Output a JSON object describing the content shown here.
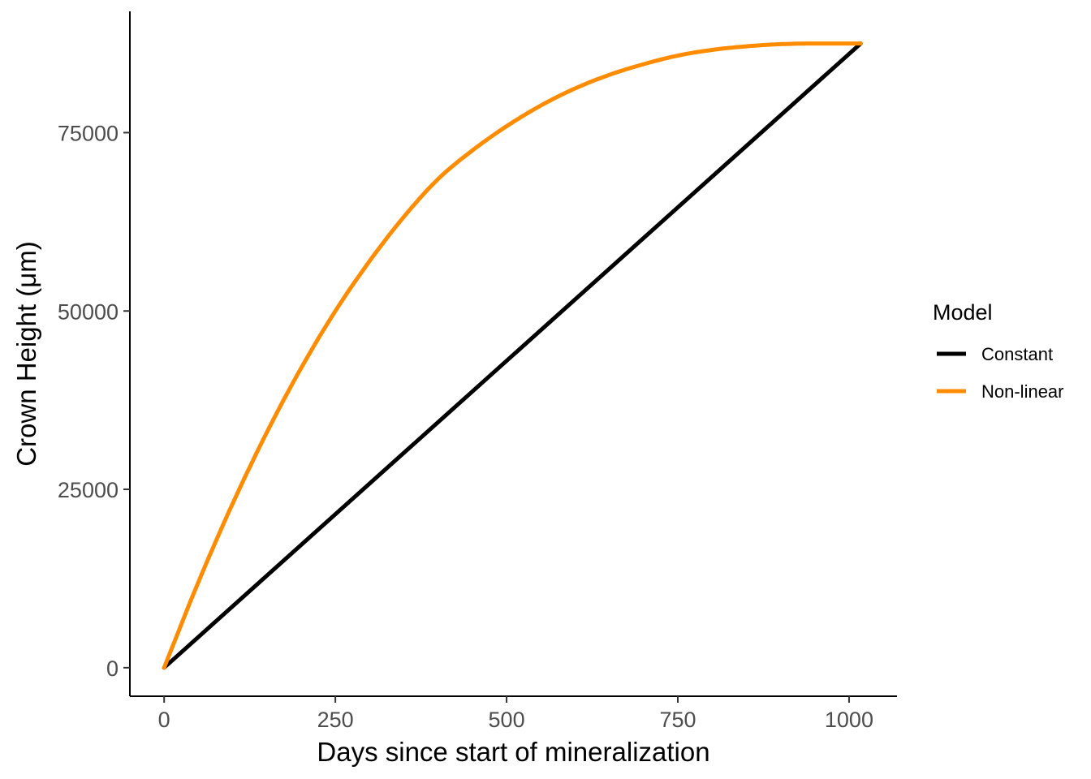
{
  "chart_data": {
    "type": "line",
    "xlabel": "Days since start of mineralization",
    "ylabel": "Crown Height (μm)",
    "xlim": [
      -50,
      1070
    ],
    "ylim": [
      -4000,
      92000
    ],
    "x_ticks": [
      0,
      250,
      500,
      750,
      1000
    ],
    "y_ticks": [
      0,
      25000,
      50000,
      75000
    ],
    "x_tick_labels": [
      "0",
      "250",
      "500",
      "750",
      "1000"
    ],
    "y_tick_labels": [
      "0",
      "25000",
      "50000",
      "75000"
    ],
    "grid": false,
    "legend": {
      "title": "Model",
      "placement": "right",
      "entries": [
        "Constant",
        "Non-linear"
      ]
    },
    "series": [
      {
        "name": "Constant",
        "color": "#000000",
        "x": [
          0,
          1017
        ],
        "y": [
          0,
          87500
        ]
      },
      {
        "name": "Non-linear",
        "color": "#ff8c00",
        "x": [
          0,
          50,
          100,
          150,
          200,
          250,
          300,
          350,
          400,
          450,
          500,
          550,
          600,
          650,
          700,
          750,
          800,
          850,
          900,
          950,
          1000,
          1017
        ],
        "y": [
          0,
          12000,
          23000,
          33000,
          42000,
          50000,
          57000,
          63200,
          68500,
          72500,
          75900,
          78800,
          81200,
          83100,
          84600,
          85800,
          86600,
          87100,
          87400,
          87500,
          87500,
          87500
        ]
      }
    ]
  }
}
